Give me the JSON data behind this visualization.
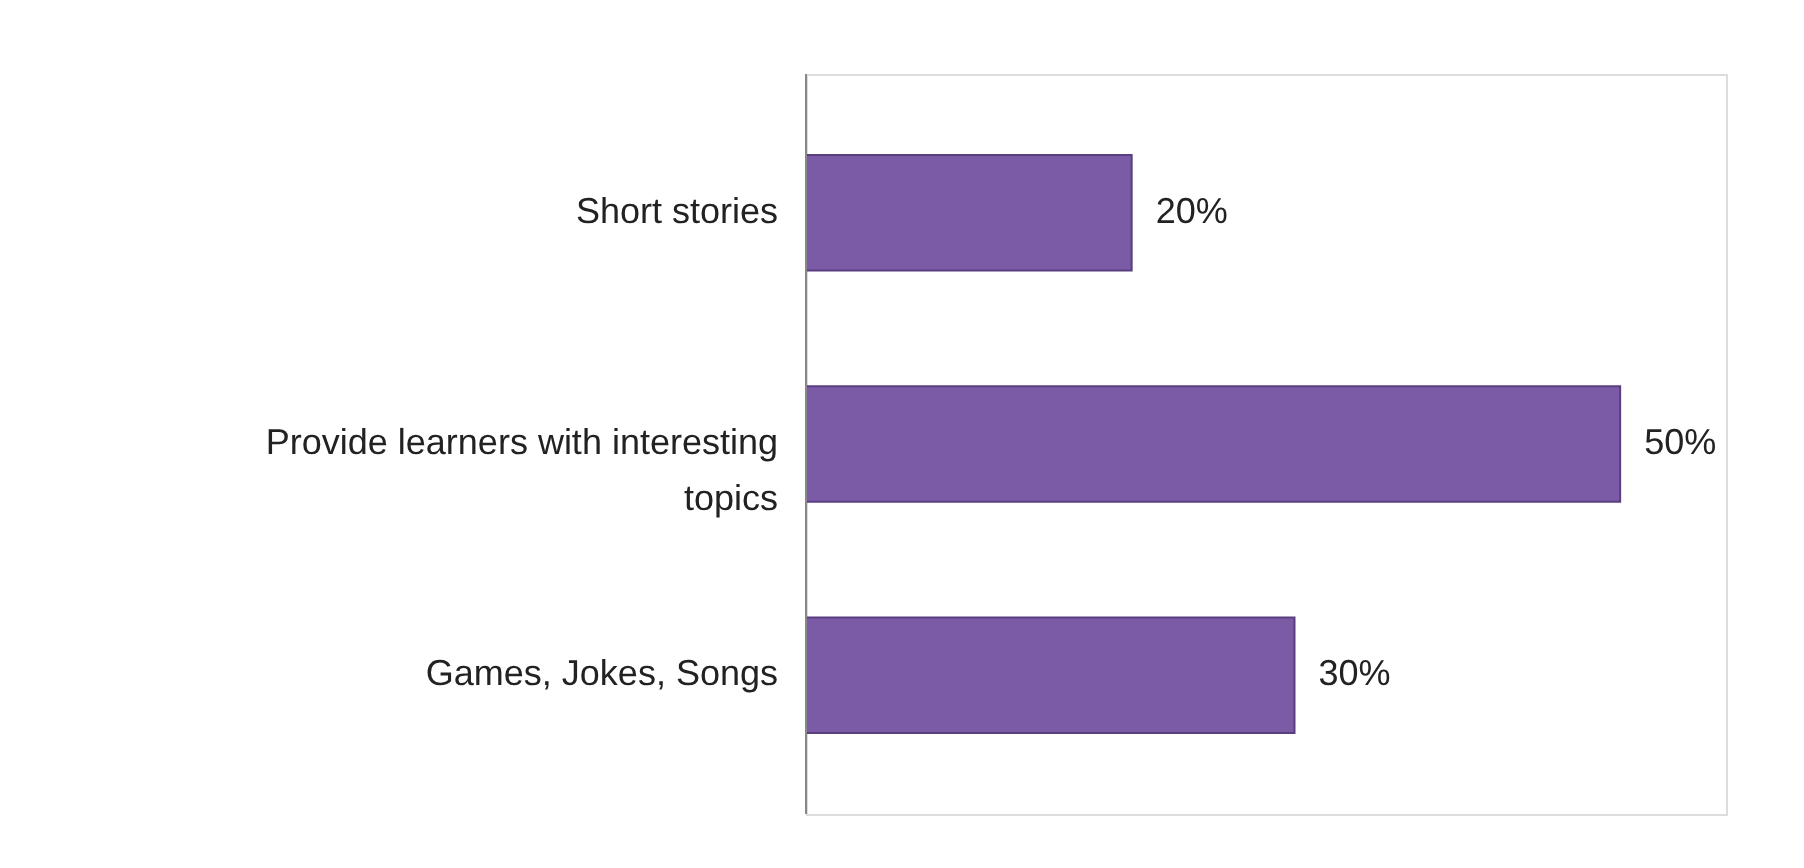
{
  "chart_data": {
    "type": "bar",
    "orientation": "horizontal",
    "categories": [
      "Short stories",
      "Provide learners with interesting topics",
      "Games, Jokes, Songs"
    ],
    "values": [
      20,
      50,
      30
    ],
    "value_labels": [
      "20%",
      "50%",
      "30%"
    ],
    "color": "#7b5aa6"
  }
}
